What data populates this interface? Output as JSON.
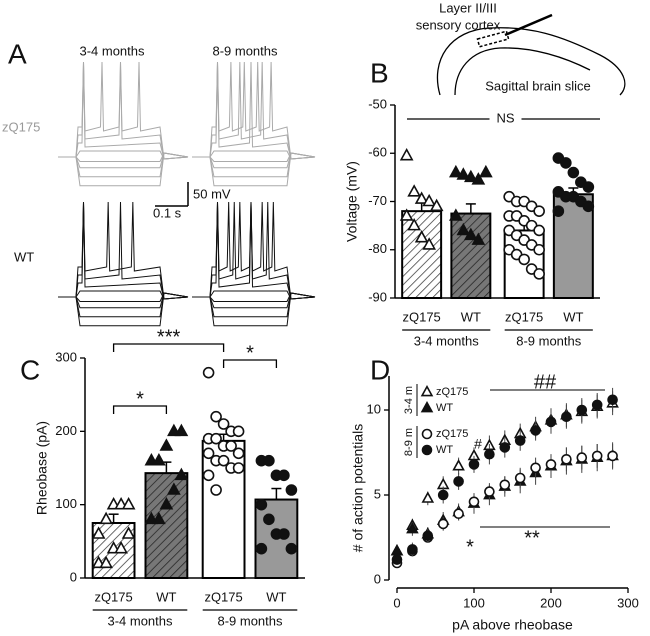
{
  "panel_a": {
    "label": "A",
    "columns": [
      "3-4 months",
      "8-9 months"
    ],
    "rows": [
      "zQ175",
      "WT"
    ],
    "scale_bar": {
      "voltage": "50 mV",
      "time": "0.1 s"
    }
  },
  "inset": {
    "lines": [
      "Layer II/III",
      "sensory cortex"
    ],
    "caption": "Sagittal brain slice"
  },
  "chart_data": [
    {
      "label": "B",
      "type": "bar",
      "y_label": "Voltage (mV)",
      "categories": [
        "zQ175",
        "WT",
        "zQ175",
        "WT"
      ],
      "groups": [
        "3-4 months",
        "8-9 months"
      ],
      "values": [
        -72,
        -72.5,
        -76,
        -68.5
      ],
      "errors": [
        2,
        2,
        1.5,
        1.3
      ],
      "colors": [
        "#ffffff",
        "#777777",
        "#ffffff",
        "#999999"
      ],
      "hatched": [
        true,
        true,
        false,
        false
      ],
      "markers": [
        {
          "shape": "triangle",
          "filled": false
        },
        {
          "shape": "triangle",
          "filled": true
        },
        {
          "shape": "circle",
          "filled": false
        },
        {
          "shape": "circle",
          "filled": true
        }
      ],
      "points": [
        [
          -60.5,
          -68,
          -69.5,
          -70,
          -71,
          -73,
          -75,
          -77.5,
          -79
        ],
        [
          -64,
          -64.5,
          -65,
          -65.5,
          -64,
          -73,
          -76,
          -77,
          -78
        ],
        [
          -69,
          -70,
          -70,
          -71,
          -72,
          -73,
          -73,
          -74,
          -75,
          -76,
          -76,
          -77,
          -78,
          -79,
          -80,
          -80,
          -81,
          -82,
          -84,
          -85
        ],
        [
          -61,
          -62,
          -64,
          -66,
          -67,
          -68,
          -69,
          -69,
          -70,
          -71,
          -72
        ]
      ],
      "ylim": [
        -90,
        -50
      ],
      "yticks": [
        -90,
        -80,
        -70,
        -60,
        -50
      ],
      "annotations": [
        "NS"
      ]
    },
    {
      "label": "C",
      "type": "bar",
      "y_label": "Rheobase (pA)",
      "categories": [
        "zQ175",
        "WT",
        "zQ175",
        "WT"
      ],
      "groups": [
        "3-4 months",
        "8-9 months"
      ],
      "values": [
        75,
        143,
        187,
        107
      ],
      "errors": [
        12,
        15,
        9,
        15
      ],
      "colors": [
        "#ffffff",
        "#777777",
        "#ffffff",
        "#999999"
      ],
      "hatched": [
        true,
        true,
        false,
        false
      ],
      "markers": [
        {
          "shape": "triangle",
          "filled": false
        },
        {
          "shape": "triangle",
          "filled": true
        },
        {
          "shape": "circle",
          "filled": false
        },
        {
          "shape": "circle",
          "filled": true
        }
      ],
      "points": [
        [
          20,
          20,
          40,
          40,
          60,
          60,
          80,
          100,
          100,
          100
        ],
        [
          80,
          80,
          100,
          120,
          140,
          160,
          160,
          180,
          200,
          200
        ],
        [
          280,
          220,
          210,
          200,
          200,
          190,
          190,
          180,
          180,
          170,
          170,
          160,
          160,
          150,
          150,
          140,
          120
        ],
        [
          160,
          160,
          140,
          140,
          120,
          100,
          80,
          60,
          60,
          40,
          40
        ]
      ],
      "ylim": [
        0,
        300
      ],
      "yticks": [
        0,
        100,
        200,
        300
      ],
      "annotations": [
        "***",
        "*",
        "*"
      ]
    },
    {
      "label": "D",
      "type": "scatter",
      "x_label": "pA above rheobase",
      "y_label": "# of action potentials",
      "x": [
        0,
        20,
        40,
        60,
        80,
        100,
        120,
        140,
        160,
        180,
        200,
        220,
        240,
        260,
        280
      ],
      "series_groups": [
        {
          "name": "3-4 m",
          "series": [
            {
              "name": "zQ175",
              "shape": "triangle",
              "filled": false,
              "values": [
                1.7,
                3.2,
                4.8,
                5.6,
                6.7,
                7.3,
                7.9,
                8.2,
                8.6,
                9.0,
                9.4,
                9.7,
                9.9,
                10.2,
                10.4
              ],
              "errors": [
                0.3,
                0.4,
                0.4,
                0.5,
                0.5,
                0.5,
                0.6,
                0.6,
                0.6,
                0.6,
                0.7,
                0.7,
                0.7,
                0.7,
                0.7
              ]
            },
            {
              "name": "WT",
              "shape": "triangle",
              "filled": true,
              "values": [
                1.7,
                3.0,
                2.7,
                3.5,
                4.0,
                4.5,
                5.0,
                5.5,
                5.8,
                6.3,
                6.7,
                7.0,
                7.1,
                7.2,
                7.3
              ],
              "errors": [
                0.3,
                0.4,
                0.4,
                0.5,
                0.5,
                0.6,
                0.6,
                0.6,
                0.7,
                0.7,
                0.7,
                0.8,
                0.8,
                0.8,
                0.8
              ]
            }
          ]
        },
        {
          "name": "8-9 m",
          "series": [
            {
              "name": "zQ175",
              "shape": "circle",
              "filled": false,
              "values": [
                1.0,
                1.7,
                2.5,
                3.3,
                3.9,
                4.6,
                5.2,
                5.6,
                6.0,
                6.6,
                6.8,
                7.1,
                7.2,
                7.3,
                7.3
              ],
              "errors": [
                0.2,
                0.3,
                0.3,
                0.4,
                0.4,
                0.5,
                0.5,
                0.5,
                0.6,
                0.6,
                0.6,
                0.7,
                0.7,
                0.7,
                0.7
              ]
            },
            {
              "name": "WT",
              "shape": "circle",
              "filled": true,
              "values": [
                1.2,
                1.8,
                2.6,
                5.0,
                5.8,
                6.8,
                7.4,
                7.8,
                8.2,
                8.8,
                9.3,
                9.6,
                10.0,
                10.3,
                10.6
              ],
              "errors": [
                0.3,
                0.4,
                0.4,
                0.5,
                0.5,
                0.5,
                0.6,
                0.6,
                0.6,
                0.6,
                0.7,
                0.7,
                0.7,
                0.7,
                0.7
              ]
            }
          ]
        }
      ],
      "xlim": [
        0,
        300
      ],
      "xticks": [
        0,
        100,
        200,
        300
      ],
      "ylim": [
        0,
        12
      ],
      "yticks": [
        0,
        5,
        10
      ],
      "annotations": [
        "##",
        "#",
        "*",
        "**"
      ]
    }
  ]
}
